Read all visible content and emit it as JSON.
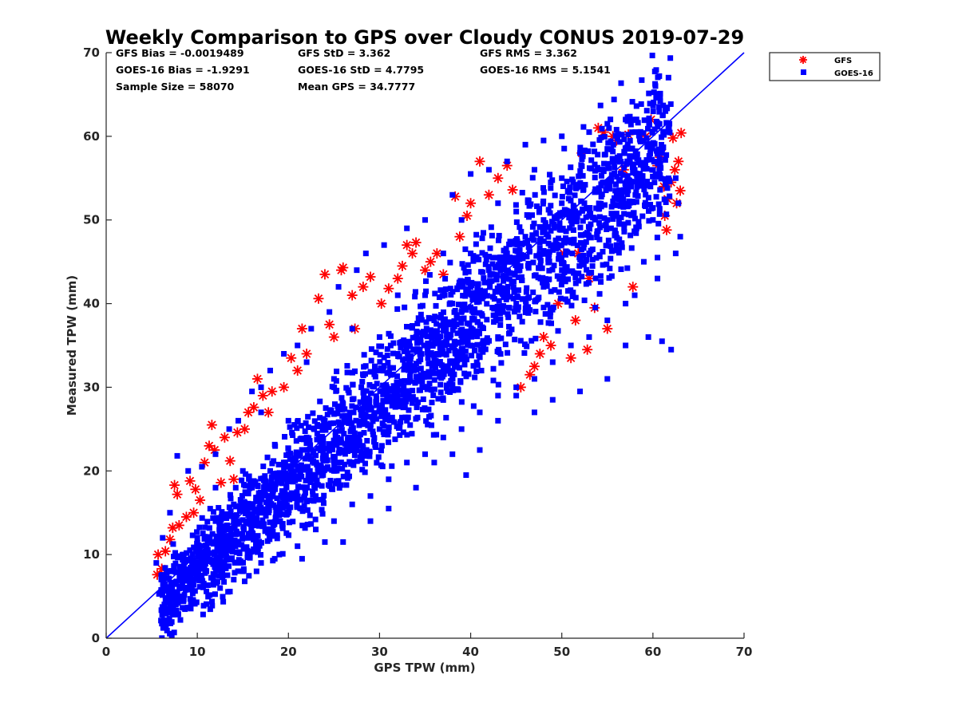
{
  "colors": {
    "gfs": "#ff0000",
    "goes16": "#0000ff",
    "reference_line": "#0000ff",
    "axis": "#262626",
    "background": "#ffffff"
  },
  "chart_data": {
    "type": "scatter",
    "title": "Weekly Comparison to GPS over Cloudy CONUS 2019-07-29",
    "xlabel": "GPS TPW (mm)",
    "ylabel": "Measured TPW (mm)",
    "xlim": [
      0,
      70
    ],
    "ylim": [
      0,
      70
    ],
    "xticks": [
      "0",
      "10",
      "20",
      "30",
      "40",
      "50",
      "60",
      "70"
    ],
    "yticks": [
      "0",
      "10",
      "20",
      "30",
      "40",
      "50",
      "60",
      "70"
    ],
    "grid": false,
    "legend_position": "outside-top-right",
    "reference_line": {
      "x": [
        0,
        70
      ],
      "y": [
        0,
        70
      ]
    },
    "stats": [
      [
        "GFS Bias = -0.0019489",
        "GFS StD = 3.362",
        "GFS RMS = 3.362"
      ],
      [
        "GOES-16 Bias = -1.9291",
        "GOES-16 StD = 4.7795",
        "GOES-16 RMS = 5.1541"
      ],
      [
        "Sample Size = 58070",
        "Mean GPS = 34.7777",
        ""
      ]
    ],
    "series": [
      {
        "name": "GFS",
        "marker": "asterisk",
        "color": "#ff0000",
        "points": [
          [
            5.6,
            7.6
          ],
          [
            5.7,
            10.0
          ],
          [
            6.1,
            8.3
          ],
          [
            6.5,
            10.4
          ],
          [
            7.0,
            11.8
          ],
          [
            7.3,
            13.2
          ],
          [
            7.5,
            18.3
          ],
          [
            7.8,
            17.2
          ],
          [
            8.0,
            13.5
          ],
          [
            8.8,
            14.5
          ],
          [
            9.2,
            18.8
          ],
          [
            9.6,
            15.0
          ],
          [
            9.8,
            17.8
          ],
          [
            10.3,
            16.5
          ],
          [
            10.8,
            21.0
          ],
          [
            11.3,
            23.0
          ],
          [
            11.6,
            25.5
          ],
          [
            11.9,
            22.5
          ],
          [
            12.6,
            18.6
          ],
          [
            13.0,
            24.0
          ],
          [
            13.6,
            21.2
          ],
          [
            14.0,
            19.0
          ],
          [
            14.4,
            24.6
          ],
          [
            15.2,
            25.0
          ],
          [
            15.6,
            27.0
          ],
          [
            16.2,
            27.6
          ],
          [
            16.6,
            31.0
          ],
          [
            17.2,
            29.0
          ],
          [
            17.8,
            27.0
          ],
          [
            18.2,
            29.5
          ],
          [
            19.5,
            30.0
          ],
          [
            20.3,
            33.5
          ],
          [
            21.0,
            32.0
          ],
          [
            21.5,
            37.0
          ],
          [
            22.0,
            34.0
          ],
          [
            23.3,
            40.6
          ],
          [
            24.0,
            43.5
          ],
          [
            24.5,
            37.5
          ],
          [
            25.0,
            36.0
          ],
          [
            25.8,
            44.0
          ],
          [
            26.0,
            44.3
          ],
          [
            27.0,
            41.0
          ],
          [
            27.3,
            37.0
          ],
          [
            28.2,
            42.0
          ],
          [
            29.0,
            43.2
          ],
          [
            30.2,
            40.0
          ],
          [
            31.0,
            41.8
          ],
          [
            32.0,
            43.0
          ],
          [
            32.5,
            44.5
          ],
          [
            33.0,
            47.0
          ],
          [
            33.6,
            46.0
          ],
          [
            34.0,
            47.3
          ],
          [
            35.0,
            44.0
          ],
          [
            35.6,
            45.0
          ],
          [
            36.3,
            46.0
          ],
          [
            37.0,
            43.5
          ],
          [
            38.3,
            52.8
          ],
          [
            38.8,
            48.0
          ],
          [
            39.6,
            50.5
          ],
          [
            40.0,
            52.0
          ],
          [
            41.0,
            57.0
          ],
          [
            42.0,
            53.0
          ],
          [
            43.0,
            55.0
          ],
          [
            44.0,
            56.5
          ],
          [
            44.6,
            53.6
          ],
          [
            45.5,
            30.0
          ],
          [
            46.5,
            31.5
          ],
          [
            47.0,
            32.5
          ],
          [
            47.6,
            34.0
          ],
          [
            48.0,
            36.0
          ],
          [
            48.8,
            35.0
          ],
          [
            49.6,
            40.0
          ],
          [
            50.2,
            46.0
          ],
          [
            51.0,
            33.5
          ],
          [
            51.5,
            38.0
          ],
          [
            51.8,
            46.0
          ],
          [
            52.2,
            58.0
          ],
          [
            52.8,
            34.5
          ],
          [
            53.0,
            43.0
          ],
          [
            53.6,
            39.5
          ],
          [
            54.0,
            61.0
          ],
          [
            54.6,
            60.5
          ],
          [
            55.0,
            37.0
          ],
          [
            55.6,
            60.0
          ],
          [
            56.0,
            59.5
          ],
          [
            56.8,
            56.0
          ],
          [
            57.3,
            60.2
          ],
          [
            57.8,
            42.0
          ],
          [
            58.6,
            55.0
          ],
          [
            59.2,
            60.0
          ],
          [
            59.8,
            62.0
          ],
          [
            60.5,
            56.5
          ],
          [
            60.8,
            57.5
          ],
          [
            61.0,
            58.0
          ],
          [
            61.3,
            50.5
          ],
          [
            61.5,
            48.8
          ],
          [
            61.6,
            52.5
          ],
          [
            62.0,
            54.5
          ],
          [
            62.4,
            56.0
          ],
          [
            62.6,
            52.0
          ],
          [
            62.8,
            57.0
          ],
          [
            63.0,
            53.5
          ],
          [
            63.1,
            60.4
          ],
          [
            62.2,
            59.8
          ],
          [
            61.2,
            54.0
          ]
        ]
      },
      {
        "name": "GOES-16",
        "marker": "square",
        "color": "#0000ff",
        "points": [
          [
            5.8,
            5.3
          ],
          [
            7.0,
            5.8
          ],
          [
            8.3,
            6.0
          ],
          [
            9.5,
            5.6
          ],
          [
            11.0,
            5.6
          ],
          [
            12.5,
            6.0
          ],
          [
            14.0,
            7.0
          ],
          [
            15.2,
            6.8
          ],
          [
            16.5,
            8.0
          ],
          [
            18.5,
            9.5
          ],
          [
            21.5,
            9.5
          ],
          [
            24.0,
            11.5
          ],
          [
            26.0,
            11.5
          ],
          [
            29.0,
            14.0
          ],
          [
            31.0,
            15.5
          ],
          [
            34.0,
            18.0
          ],
          [
            36.0,
            21.0
          ],
          [
            38.0,
            22.0
          ],
          [
            39.5,
            19.5
          ],
          [
            41.0,
            22.5
          ],
          [
            43.0,
            26.0
          ],
          [
            45.0,
            29.0
          ],
          [
            47.0,
            27.0
          ],
          [
            49.0,
            28.5
          ],
          [
            52.0,
            29.5
          ],
          [
            55.0,
            31.0
          ],
          [
            57.0,
            35.0
          ],
          [
            59.5,
            36.0
          ],
          [
            61.0,
            35.5
          ],
          [
            62.0,
            34.5
          ],
          [
            60.5,
            43.0
          ],
          [
            62.5,
            46.0
          ],
          [
            63.0,
            48.0
          ],
          [
            62.8,
            52.0
          ],
          [
            62.5,
            55.0
          ],
          [
            61.0,
            58.0
          ],
          [
            59.5,
            59.0
          ],
          [
            57.0,
            62.0
          ],
          [
            55.0,
            61.5
          ],
          [
            53.0,
            60.5
          ],
          [
            50.0,
            60.0
          ],
          [
            48.0,
            59.5
          ],
          [
            46.0,
            59.0
          ],
          [
            44.0,
            57.0
          ],
          [
            42.0,
            56.0
          ],
          [
            40.0,
            55.5
          ],
          [
            39.0,
            50.0
          ],
          [
            38.0,
            53.0
          ],
          [
            35.0,
            50.0
          ],
          [
            33.0,
            49.0
          ],
          [
            30.5,
            47.0
          ],
          [
            28.5,
            46.0
          ],
          [
            27.5,
            44.0
          ],
          [
            25.5,
            42.0
          ],
          [
            24.5,
            39.0
          ],
          [
            22.5,
            37.0
          ],
          [
            21.0,
            35.0
          ],
          [
            19.5,
            34.0
          ],
          [
            18.0,
            32.0
          ],
          [
            17.0,
            30.0
          ],
          [
            16.0,
            29.5
          ],
          [
            14.5,
            26.0
          ],
          [
            13.5,
            25.0
          ],
          [
            12.0,
            22.0
          ],
          [
            10.5,
            20.5
          ],
          [
            9.0,
            20.0
          ],
          [
            7.8,
            21.8
          ],
          [
            7.0,
            15.0
          ],
          [
            6.2,
            12.0
          ],
          [
            5.5,
            9.0
          ],
          [
            8.5,
            10.0
          ],
          [
            10.0,
            12.0
          ],
          [
            12.0,
            14.0
          ],
          [
            14.0,
            16.0
          ],
          [
            16.0,
            18.0
          ],
          [
            18.0,
            20.0
          ],
          [
            20.0,
            22.0
          ],
          [
            22.0,
            24.0
          ],
          [
            24.0,
            26.0
          ],
          [
            26.0,
            28.0
          ],
          [
            28.0,
            30.0
          ],
          [
            30.0,
            32.0
          ],
          [
            32.0,
            34.0
          ],
          [
            34.0,
            36.0
          ],
          [
            36.0,
            38.0
          ],
          [
            38.0,
            40.0
          ],
          [
            40.0,
            42.0
          ],
          [
            42.0,
            44.0
          ],
          [
            44.0,
            46.0
          ],
          [
            46.0,
            48.0
          ],
          [
            48.0,
            50.0
          ],
          [
            50.0,
            52.0
          ],
          [
            52.0,
            54.0
          ],
          [
            54.0,
            56.0
          ],
          [
            56.0,
            57.0
          ],
          [
            58.0,
            56.0
          ],
          [
            60.0,
            50.0
          ],
          [
            59.0,
            45.0
          ],
          [
            57.0,
            40.0
          ],
          [
            55.0,
            38.0
          ],
          [
            53.0,
            36.0
          ],
          [
            51.0,
            35.0
          ],
          [
            49.0,
            33.0
          ],
          [
            47.0,
            31.0
          ],
          [
            45.0,
            30.0
          ],
          [
            43.0,
            29.0
          ],
          [
            41.0,
            27.0
          ],
          [
            39.0,
            25.0
          ],
          [
            37.0,
            24.0
          ],
          [
            35.0,
            22.0
          ],
          [
            33.0,
            21.0
          ],
          [
            31.0,
            19.0
          ],
          [
            29.0,
            17.0
          ],
          [
            27.0,
            16.0
          ],
          [
            25.0,
            14.0
          ],
          [
            23.0,
            13.0
          ],
          [
            21.0,
            11.0
          ],
          [
            19.0,
            10.0
          ],
          [
            17.0,
            9.0
          ],
          [
            15.0,
            8.0
          ],
          [
            13.0,
            8.5
          ],
          [
            11.0,
            8.0
          ],
          [
            9.0,
            8.0
          ],
          [
            7.0,
            8.0
          ],
          [
            20.0,
            15.0
          ],
          [
            25.0,
            20.0
          ],
          [
            30.0,
            25.0
          ],
          [
            35.0,
            30.0
          ],
          [
            40.0,
            35.0
          ],
          [
            45.0,
            40.0
          ],
          [
            50.0,
            45.0
          ],
          [
            55.0,
            50.0
          ],
          [
            15.0,
            20.0
          ],
          [
            20.0,
            26.0
          ],
          [
            25.0,
            31.0
          ],
          [
            30.0,
            36.0
          ],
          [
            35.0,
            41.0
          ],
          [
            40.0,
            46.0
          ],
          [
            45.0,
            51.0
          ],
          [
            50.0,
            55.0
          ],
          [
            56.0,
            47.0
          ],
          [
            58.0,
            41.0
          ],
          [
            60.5,
            45.5
          ],
          [
            57.5,
            58.5
          ],
          [
            52.0,
            58.0
          ],
          [
            47.0,
            56.0
          ],
          [
            43.0,
            52.0
          ],
          [
            37.0,
            46.0
          ],
          [
            32.0,
            41.0
          ],
          [
            27.0,
            37.0
          ],
          [
            22.0,
            33.0
          ],
          [
            17.0,
            27.0
          ],
          [
            12.0,
            18.0
          ],
          [
            33.0,
            26.0
          ],
          [
            38.0,
            31.0
          ],
          [
            43.0,
            36.0
          ],
          [
            48.0,
            42.0
          ],
          [
            53.0,
            46.0
          ],
          [
            28.0,
            22.0
          ],
          [
            23.0,
            17.0
          ],
          [
            18.0,
            13.0
          ],
          [
            13.0,
            11.0
          ]
        ]
      }
    ]
  }
}
